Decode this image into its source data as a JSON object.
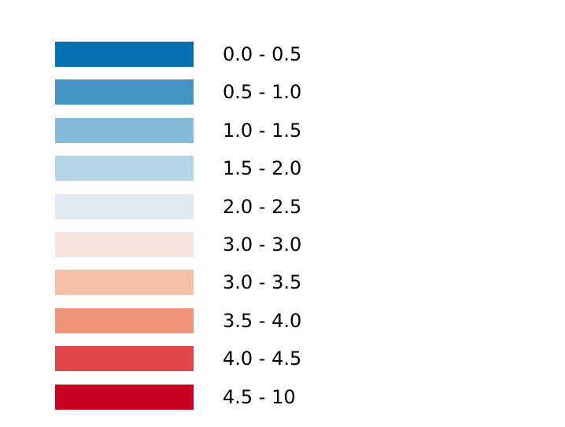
{
  "legend": {
    "items": [
      {
        "label": "0.0 - 0.5",
        "color": "#0571b0"
      },
      {
        "label": "0.5 - 1.0",
        "color": "#4393c3"
      },
      {
        "label": "1.0 - 1.5",
        "color": "#85bbd9"
      },
      {
        "label": "1.5 - 2.0",
        "color": "#b5d6e7"
      },
      {
        "label": "2.0 - 2.5",
        "color": "#e1eaf1"
      },
      {
        "label": "3.0 - 3.0",
        "color": "#f7e4dc"
      },
      {
        "label": "3.0 - 3.5",
        "color": "#f5c0a8"
      },
      {
        "label": "3.5 - 4.0",
        "color": "#f09479"
      },
      {
        "label": "4.0 - 4.5",
        "color": "#df474b"
      },
      {
        "label": "4.5 - 10",
        "color": "#ca0020"
      }
    ]
  }
}
